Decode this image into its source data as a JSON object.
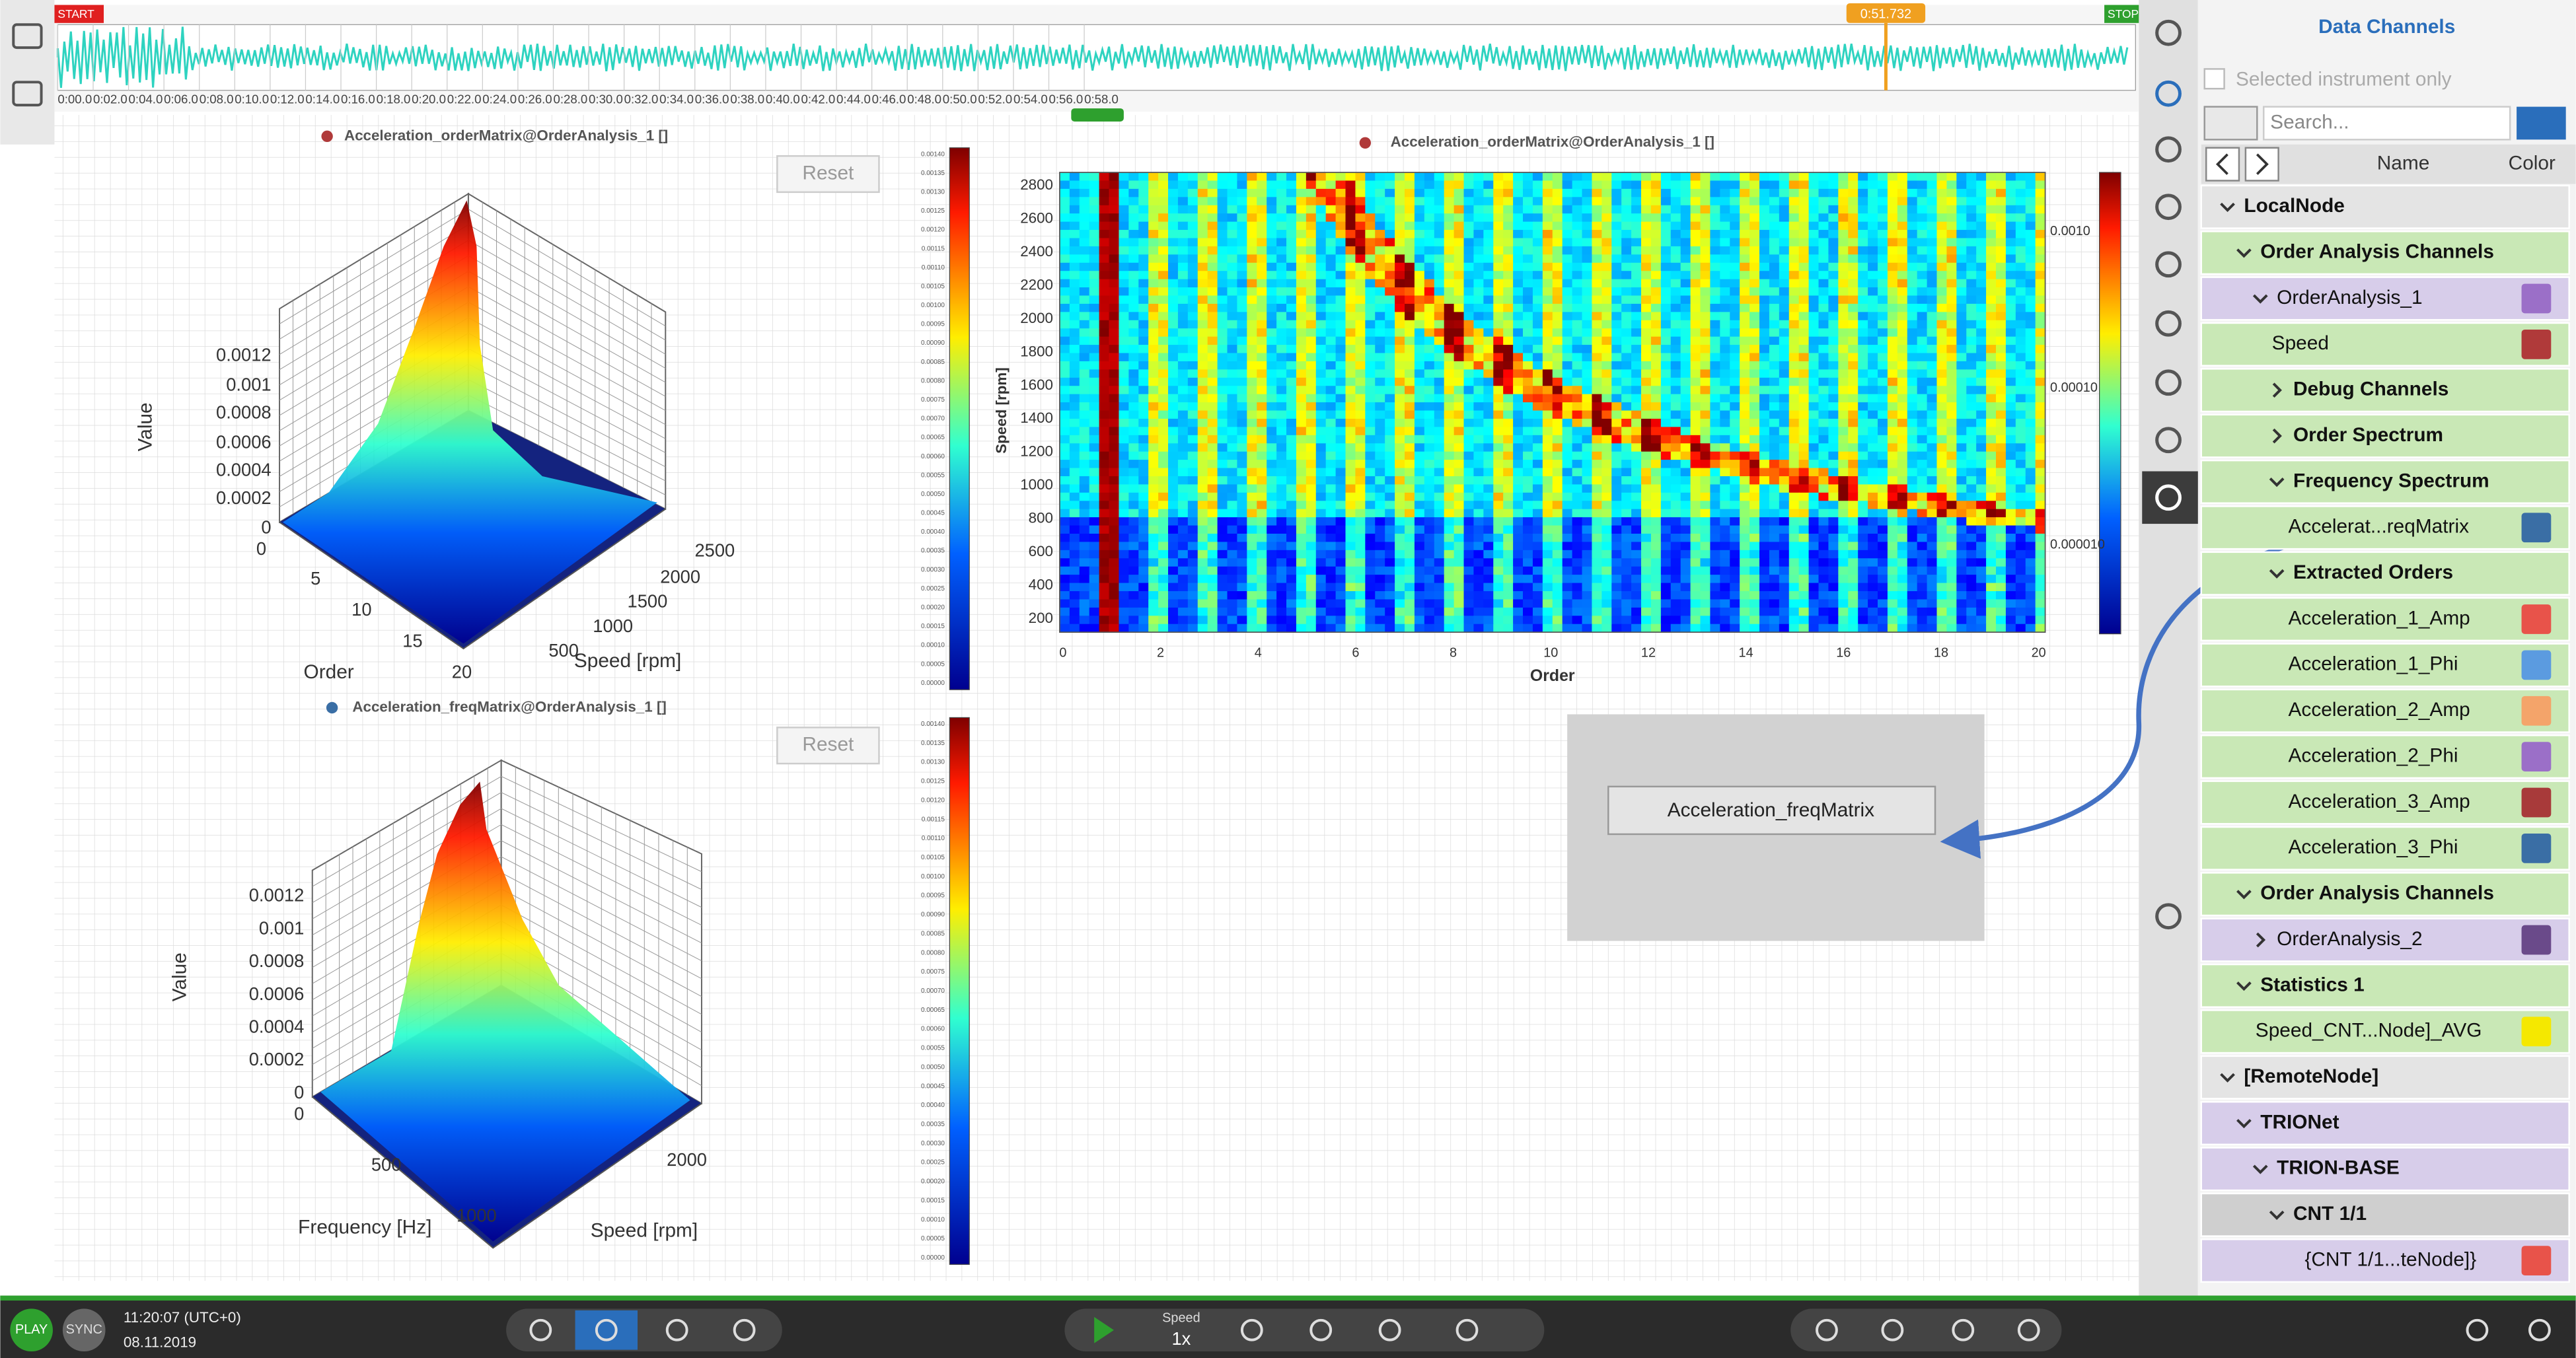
{
  "timeline": {
    "start": "START",
    "stop": "STOP",
    "cursor": "0:51.732",
    "ticks": [
      "0:00.0",
      "0:02.0",
      "0:04.0",
      "0:06.0",
      "0:08.0",
      "0:10.0",
      "0:12.0",
      "0:14.0",
      "0:16.0",
      "0:18.0",
      "0:20.0",
      "0:22.0",
      "0:24.0",
      "0:26.0",
      "0:28.0",
      "0:30.0",
      "0:32.0",
      "0:34.0",
      "0:36.0",
      "0:38.0",
      "0:40.0",
      "0:42.0",
      "0:44.0",
      "0:46.0",
      "0:48.0",
      "0:50.0",
      "0:52.0",
      "0:54.0",
      "0:56.0",
      "0:58.0"
    ]
  },
  "plots": [
    {
      "title": "Acceleration_orderMatrix@OrderAnalysis_1 []",
      "title_color": "#b03a3a",
      "reset": "Reset",
      "value_label": "Value",
      "z_ticks": [
        "0.0012",
        "0.001",
        "0.0008",
        "0.0006",
        "0.0004",
        "0.0002",
        "0"
      ],
      "z_origin": "0",
      "x_label": "Order",
      "x_ticks": [
        "5",
        "10",
        "15",
        "20"
      ],
      "y_label": "Speed [rpm]",
      "y_ticks": [
        "500",
        "1000",
        "1500",
        "2000",
        "2500"
      ]
    },
    {
      "title": "Acceleration_freqMatrix@OrderAnalysis_1 []",
      "title_color": "#3a6ea5",
      "reset": "Reset",
      "value_label": "Value",
      "z_ticks": [
        "0.0012",
        "0.001",
        "0.0008",
        "0.0006",
        "0.0004",
        "0.0002",
        "0"
      ],
      "z_origin": "0",
      "x_label": "Frequency [Hz]",
      "x_ticks": [
        "500",
        "1000"
      ],
      "y_label": "Speed [rpm]",
      "y_ticks": [
        "2000"
      ]
    }
  ],
  "colorbar_labels": [
    "0.00140",
    "0.00135",
    "0.00130",
    "0.00125",
    "0.00120",
    "0.00115",
    "0.00110",
    "0.00105",
    "0.00100",
    "0.00095",
    "0.00090",
    "0.00085",
    "0.00080",
    "0.00075",
    "0.00070",
    "0.00065",
    "0.00060",
    "0.00055",
    "0.00050",
    "0.00045",
    "0.00040",
    "0.00035",
    "0.00030",
    "0.00025",
    "0.00020",
    "0.00015",
    "0.00010",
    "0.00005",
    "0.00000"
  ],
  "heatmap": {
    "title": "Acceleration_orderMatrix@OrderAnalysis_1 []",
    "title_color": "#b03a3a",
    "y_label": "Speed [rpm]",
    "x_label": "Order",
    "yticks": [
      200,
      400,
      600,
      800,
      1000,
      1200,
      1400,
      1600,
      1800,
      2000,
      2200,
      2400,
      2600,
      2800
    ],
    "xticks": [
      0,
      2,
      4,
      6,
      8,
      10,
      12,
      14,
      16,
      18,
      20
    ],
    "colorbar_labels": [
      "0.0010",
      "0.00010",
      "0.000010"
    ]
  },
  "drop_target": "Acceleration_freqMatrix",
  "channels": {
    "title": "Data Channels",
    "filter_label": "Selected instrument only",
    "search_placeholder": "Search...",
    "name_header": "Name",
    "color_header": "Color",
    "rows": [
      {
        "label": "LocalNode",
        "level": 0,
        "bold": true,
        "open": true,
        "bg": "#e4e4e4"
      },
      {
        "label": "Order Analysis Channels",
        "level": 1,
        "bold": true,
        "open": true,
        "bg": "#c9e8b6"
      },
      {
        "label": "OrderAnalysis_1",
        "level": 2,
        "bold": false,
        "open": true,
        "bg": "#d7cdea",
        "color": "#9b6fc8"
      },
      {
        "label": "Speed",
        "level": 2,
        "bold": false,
        "bg": "#c9e8b6",
        "color": "#b03a3a"
      },
      {
        "label": "Debug Channels",
        "level": 3,
        "bold": true,
        "open": false,
        "bg": "#c9e8b6"
      },
      {
        "label": "Order Spectrum",
        "level": 3,
        "bold": true,
        "open": false,
        "bg": "#c9e8b6"
      },
      {
        "label": "Frequency Spectrum",
        "level": 3,
        "bold": true,
        "open": true,
        "bg": "#c9e8b6"
      },
      {
        "label": "Accelerat...reqMatrix",
        "level": 3,
        "bold": false,
        "bg": "#c9e8b6",
        "color": "#3a6ea5"
      },
      {
        "label": "Extracted Orders",
        "level": 3,
        "bold": true,
        "open": true,
        "bg": "#c9e8b6"
      },
      {
        "label": "Acceleration_1_Amp",
        "level": 3,
        "bold": false,
        "bg": "#c9e8b6",
        "color": "#e8534a"
      },
      {
        "label": "Acceleration_1_Phi",
        "level": 3,
        "bold": false,
        "bg": "#c9e8b6",
        "color": "#5b9be0"
      },
      {
        "label": "Acceleration_2_Amp",
        "level": 3,
        "bold": false,
        "bg": "#c9e8b6",
        "color": "#f4a46a"
      },
      {
        "label": "Acceleration_2_Phi",
        "level": 3,
        "bold": false,
        "bg": "#c9e8b6",
        "color": "#9b6fc8"
      },
      {
        "label": "Acceleration_3_Amp",
        "level": 3,
        "bold": false,
        "bg": "#c9e8b6",
        "color": "#a83a3a"
      },
      {
        "label": "Acceleration_3_Phi",
        "level": 3,
        "bold": false,
        "bg": "#c9e8b6",
        "color": "#3a6ea5"
      },
      {
        "label": "Order Analysis Channels",
        "level": 1,
        "bold": true,
        "open": true,
        "bg": "#c9e8b6"
      },
      {
        "label": "OrderAnalysis_2",
        "level": 2,
        "bold": false,
        "open": false,
        "bg": "#d7cdea",
        "color": "#6a4a8a"
      },
      {
        "label": "Statistics 1",
        "level": 1,
        "bold": true,
        "open": true,
        "bg": "#c9e8b6"
      },
      {
        "label": "Speed_CNT...Node]_AVG",
        "level": 1,
        "bold": false,
        "bg": "#c9e8b6",
        "color": "#f5e800"
      },
      {
        "label": "[RemoteNode]",
        "level": 0,
        "bold": true,
        "open": true,
        "bg": "#e4e4e4"
      },
      {
        "label": "TRIONet",
        "level": 1,
        "bold": true,
        "open": true,
        "bg": "#d7cdea"
      },
      {
        "label": "TRION-BASE",
        "level": 2,
        "bold": true,
        "open": true,
        "bg": "#d7cdea"
      },
      {
        "label": "CNT 1/1",
        "level": 3,
        "bold": true,
        "open": true,
        "bg": "#cfcfcf"
      },
      {
        "label": "{CNT 1/1...teNode]}",
        "level": 4,
        "bold": false,
        "bg": "#d7cdea",
        "color": "#e8534a"
      }
    ]
  },
  "status": {
    "play": "PLAY",
    "sync": "SYNC",
    "time": "11:20:07 (UTC+0)",
    "date": "08.11.2019",
    "speed_label": "Speed",
    "speed": "1x"
  }
}
